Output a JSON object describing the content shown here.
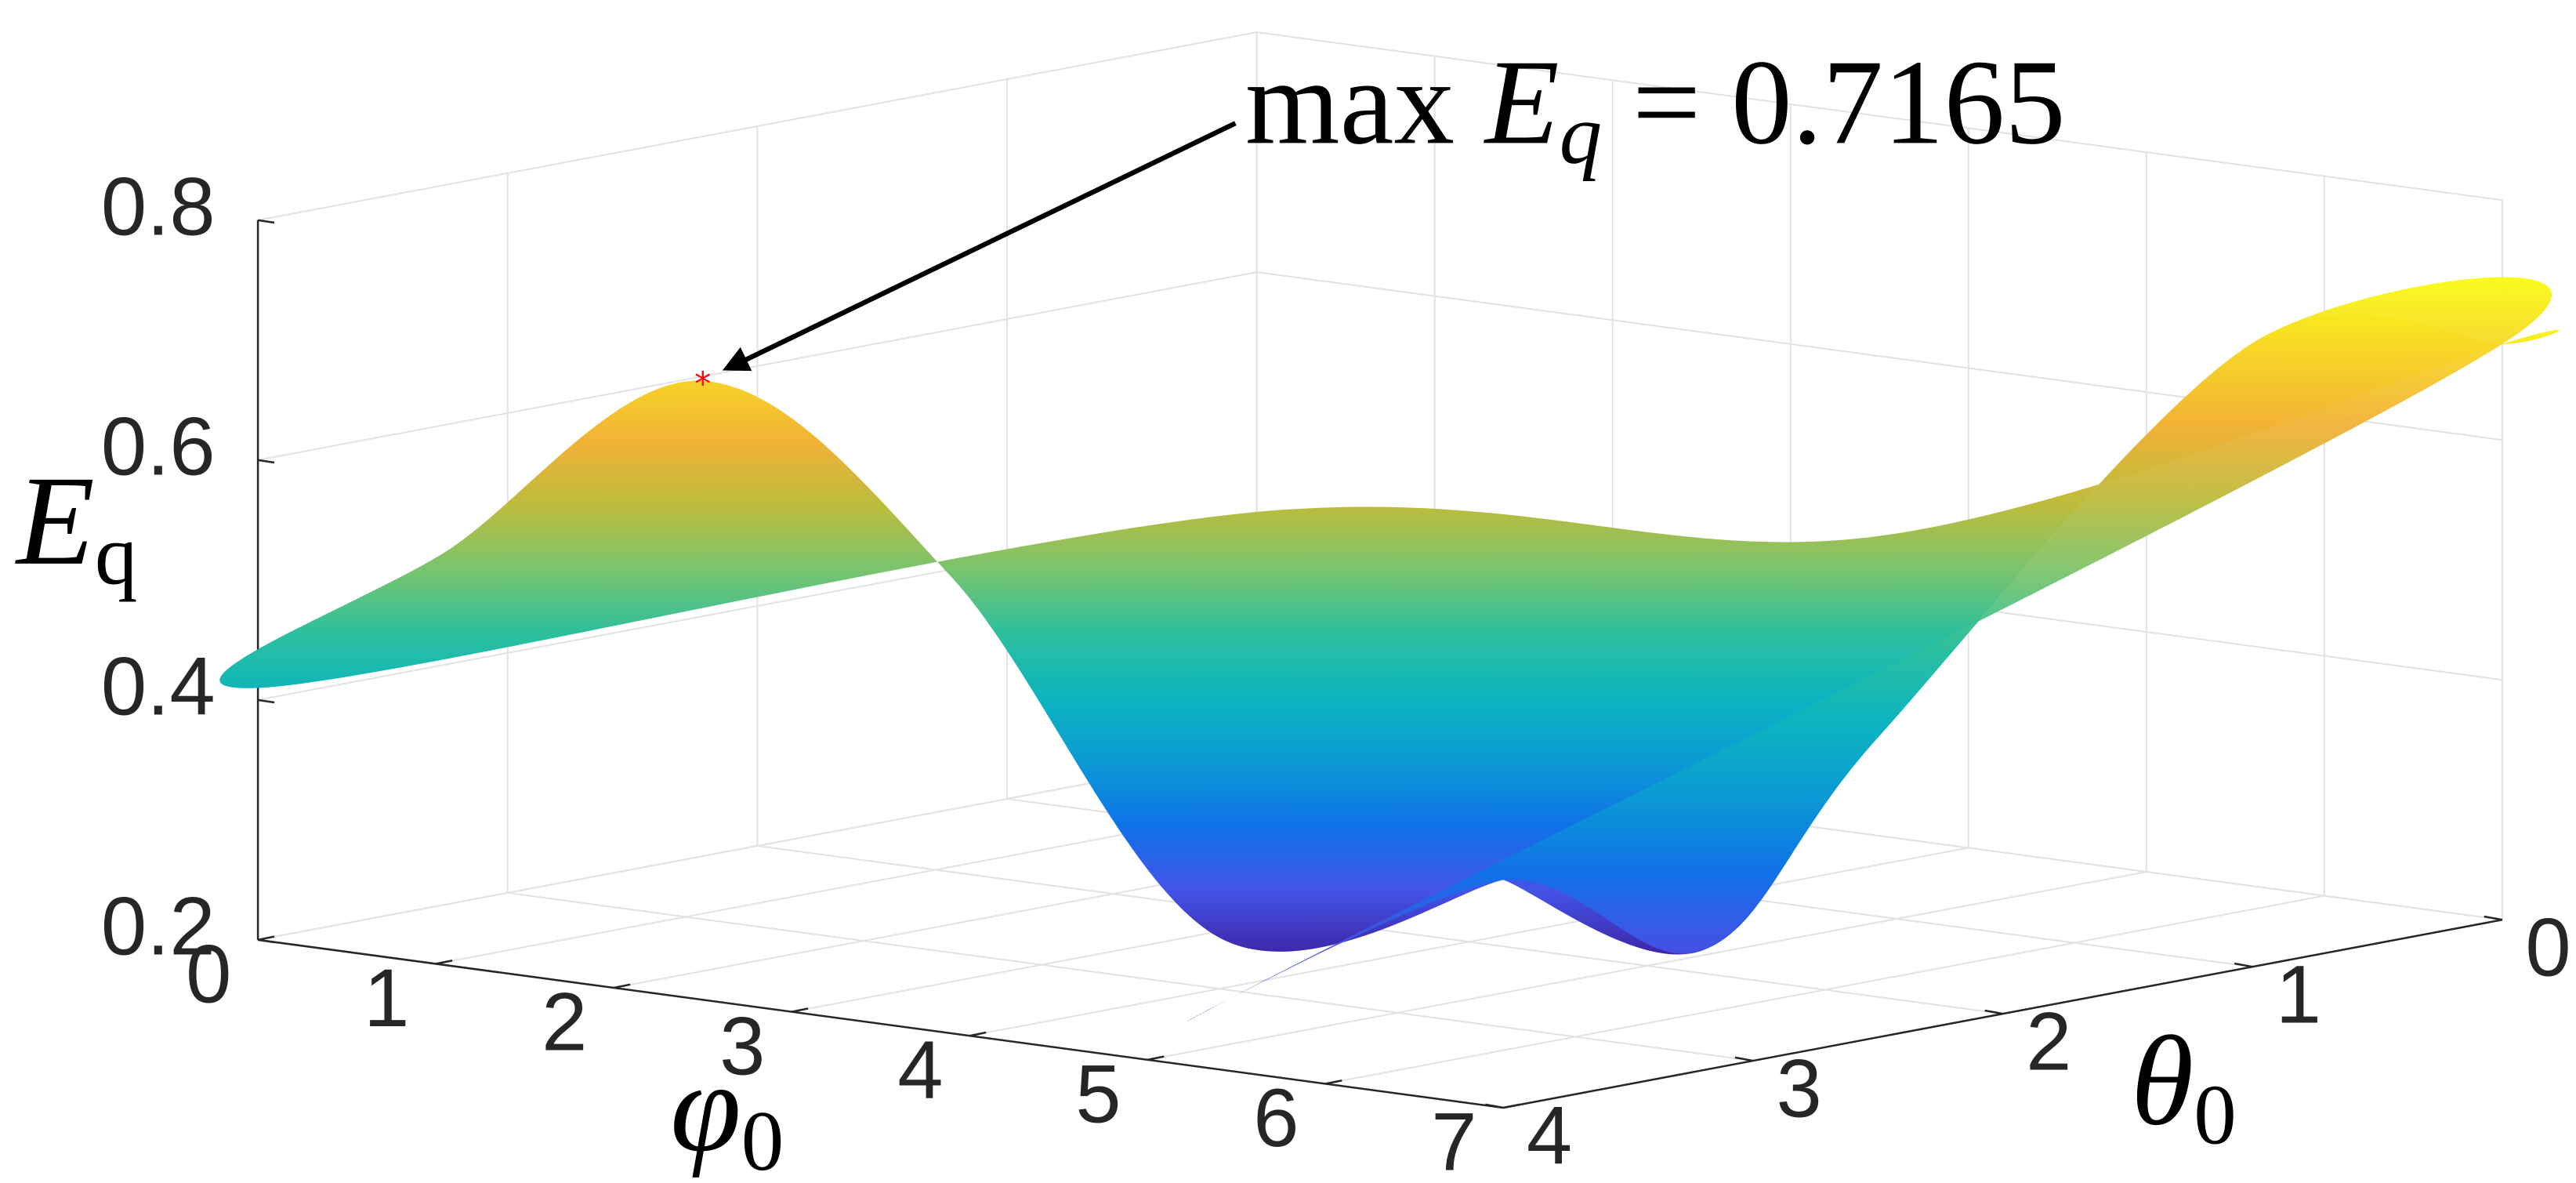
{
  "chart_data": {
    "type": "surface",
    "zlabel": {
      "base": "E",
      "sub": "q"
    },
    "xlabel": {
      "base": "φ",
      "sub": "0"
    },
    "ylabel": {
      "base": "θ",
      "sub": "0"
    },
    "zlim": [
      0.2,
      0.8
    ],
    "xlim": [
      0,
      7
    ],
    "ylim": [
      0,
      4
    ],
    "z_ticks": [
      "0.2",
      "0.4",
      "0.6",
      "0.8"
    ],
    "x_ticks": [
      "0",
      "1",
      "2",
      "3",
      "4",
      "5",
      "6",
      "7"
    ],
    "y_ticks": [
      "0",
      "1",
      "2",
      "3",
      "4"
    ],
    "grid": true,
    "colormap": "parula",
    "colormap_stops": [
      "#3e26a8",
      "#4353e7",
      "#0f72e8",
      "#0b9ad3",
      "#0cb4c0",
      "#2bbf9e",
      "#79c46e",
      "#bcbc3d",
      "#f1b136",
      "#f7d527",
      "#f9fb14"
    ],
    "surface_samples": [
      {
        "phi": 0.0,
        "theta": 4.0,
        "Eq": 0.41
      },
      {
        "phi": 1.1,
        "theta": 4.0,
        "Eq": 0.55
      },
      {
        "phi": 2.5,
        "theta": 4.0,
        "Eq": 0.716
      },
      {
        "phi": 3.9,
        "theta": 4.0,
        "Eq": 0.58
      },
      {
        "phi": 5.4,
        "theta": 4.0,
        "Eq": 0.31
      },
      {
        "phi": 7.0,
        "theta": 4.0,
        "Eq": 0.39
      },
      {
        "phi": 0.0,
        "theta": 0.0,
        "Eq": 0.4
      },
      {
        "phi": 3.5,
        "theta": 0.0,
        "Eq": 0.45
      },
      {
        "phi": 7.0,
        "theta": 0.0,
        "Eq": 0.68
      },
      {
        "phi": 7.0,
        "theta": 1.0,
        "Eq": 0.72
      },
      {
        "phi": 7.0,
        "theta": 2.5,
        "Eq": 0.45
      },
      {
        "phi": 7.0,
        "theta": 3.2,
        "Eq": 0.3
      }
    ],
    "max_point": {
      "phi": 2.5,
      "theta": 4.0,
      "Eq": 0.7165
    },
    "annotation": {
      "prefix": "max ",
      "base": "E",
      "sub": "q",
      "suffix": " = 0.7165"
    }
  }
}
